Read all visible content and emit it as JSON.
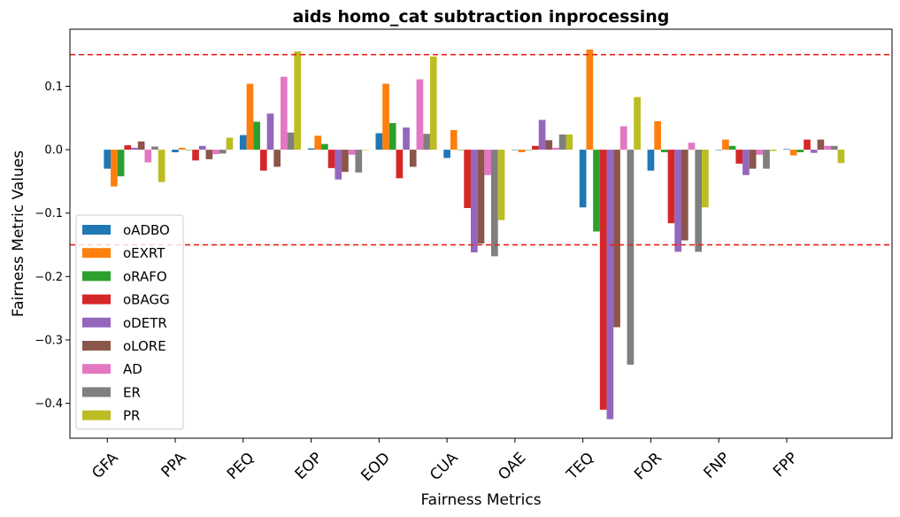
{
  "chart_data": {
    "type": "bar",
    "title": "aids homo_cat subtraction inprocessing",
    "xlabel": "Fairness Metrics",
    "ylabel": "Fairness Metric Values",
    "ylim": [
      -0.455,
      0.19
    ],
    "yticks": [
      -0.4,
      -0.3,
      -0.2,
      -0.1,
      0.0,
      0.1
    ],
    "ytick_labels": [
      "−0.4",
      "−0.3",
      "−0.2",
      "−0.1",
      "0.0",
      "0.1"
    ],
    "categories": [
      "GFA",
      "PPA",
      "PEQ",
      "EOP",
      "EOD",
      "CUA",
      "OAE",
      "TEQ",
      "FOR",
      "FNP",
      "FPP"
    ],
    "thresholds": [
      0.15,
      -0.15
    ],
    "threshold_color": "#e8221b",
    "grid": false,
    "legend_position": "lower-left",
    "series": [
      {
        "name": "oADBO",
        "color": "#1f77b4",
        "values": [
          -0.03,
          -0.004,
          0.023,
          0.002,
          0.026,
          -0.013,
          0.0,
          -0.091,
          -0.033,
          0.0,
          0.001
        ]
      },
      {
        "name": "oEXRT",
        "color": "#ff7f0e",
        "values": [
          -0.058,
          0.003,
          0.104,
          0.022,
          0.104,
          0.031,
          -0.004,
          0.158,
          0.045,
          0.016,
          -0.009
        ]
      },
      {
        "name": "oRAFO",
        "color": "#2ca02c",
        "values": [
          -0.042,
          0.0,
          0.044,
          0.009,
          0.042,
          0.0,
          0.0,
          -0.129,
          -0.004,
          0.006,
          -0.004
        ]
      },
      {
        "name": "oBAGG",
        "color": "#d62728",
        "values": [
          0.007,
          -0.017,
          -0.033,
          -0.029,
          -0.045,
          -0.092,
          0.006,
          -0.41,
          -0.116,
          -0.022,
          0.016
        ]
      },
      {
        "name": "oDETR",
        "color": "#9467bd",
        "values": [
          0.003,
          0.006,
          0.057,
          -0.047,
          0.035,
          -0.162,
          0.047,
          -0.425,
          -0.161,
          -0.04,
          -0.005
        ]
      },
      {
        "name": "oLORE",
        "color": "#8c564b",
        "values": [
          0.013,
          -0.015,
          -0.027,
          -0.035,
          -0.027,
          -0.148,
          0.015,
          -0.28,
          -0.143,
          -0.03,
          0.016
        ]
      },
      {
        "name": "AD",
        "color": "#e377c2",
        "values": [
          -0.02,
          -0.007,
          0.115,
          -0.008,
          0.111,
          -0.04,
          0.003,
          0.037,
          0.011,
          -0.008,
          0.006
        ]
      },
      {
        "name": "ER",
        "color": "#7f7f7f",
        "values": [
          0.005,
          -0.006,
          0.027,
          -0.036,
          0.025,
          -0.168,
          0.024,
          -0.339,
          -0.161,
          -0.03,
          0.006
        ]
      },
      {
        "name": "PR",
        "color": "#bcbd22",
        "values": [
          -0.051,
          0.019,
          0.155,
          0.0,
          0.147,
          -0.111,
          0.024,
          0.083,
          -0.091,
          -0.002,
          -0.021
        ]
      }
    ]
  }
}
